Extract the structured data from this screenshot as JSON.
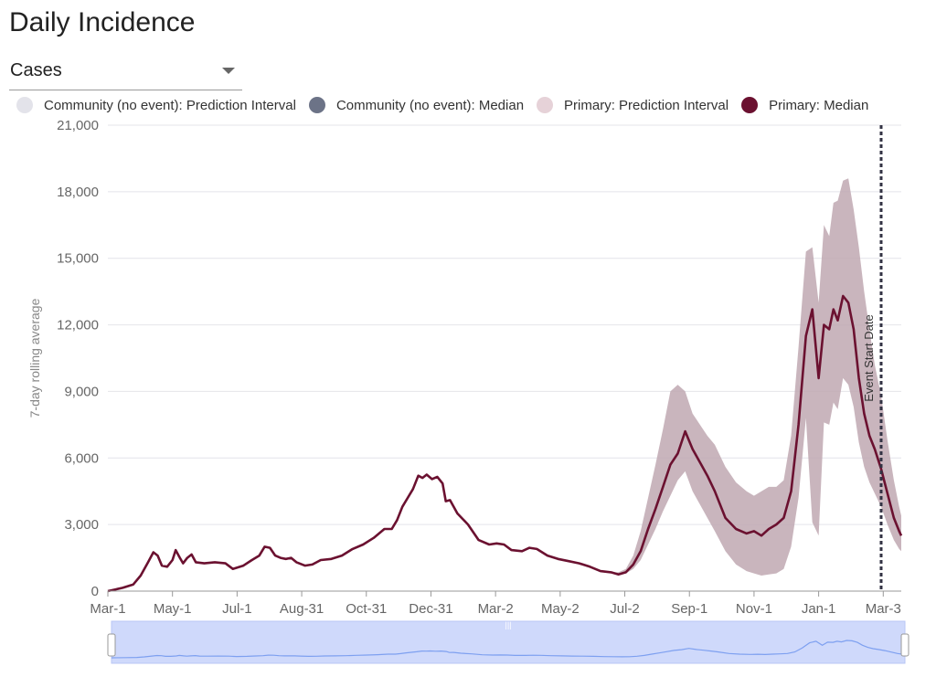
{
  "title": "Daily Incidence",
  "selector": {
    "value": "Cases"
  },
  "legend": [
    {
      "label": "Community (no event): Prediction Interval",
      "color": "#e3e3ea"
    },
    {
      "label": "Community (no event): Median",
      "color": "#6c7387"
    },
    {
      "label": "Primary: Prediction Interval",
      "color": "#e6d2d8"
    },
    {
      "label": "Primary: Median",
      "color": "#6b1130"
    }
  ],
  "colors": {
    "band": "#bfa8b1",
    "median": "#6b1130",
    "event_line": "#333344",
    "navigator": "#7ea0f0",
    "navigator_bg": "#cfd9fb"
  },
  "chart_data": {
    "type": "area",
    "ylabel": "7-day rolling average",
    "ylim": [
      0,
      21000
    ],
    "yticks": [
      0,
      3000,
      6000,
      9000,
      12000,
      15000,
      18000,
      21000
    ],
    "ytick_labels": [
      "0",
      "3,000",
      "6,000",
      "9,000",
      "12,000",
      "15,000",
      "18,000",
      "21,000"
    ],
    "x_range": [
      "2020-03-01",
      "2022-03-20"
    ],
    "xticks": [
      {
        "date": "2020-03-01",
        "label": "Mar-1"
      },
      {
        "date": "2020-05-01",
        "label": "May-1"
      },
      {
        "date": "2020-07-01",
        "label": "Jul-1"
      },
      {
        "date": "2020-08-31",
        "label": "Aug-31"
      },
      {
        "date": "2020-10-31",
        "label": "Oct-31"
      },
      {
        "date": "2020-12-31",
        "label": "Dec-31"
      },
      {
        "date": "2021-03-02",
        "label": "Mar-2"
      },
      {
        "date": "2021-05-02",
        "label": "May-2"
      },
      {
        "date": "2021-07-02",
        "label": "Jul-2"
      },
      {
        "date": "2021-09-01",
        "label": "Sep-1"
      },
      {
        "date": "2021-11-01",
        "label": "Nov-1"
      },
      {
        "date": "2022-01-01",
        "label": "Jan-1"
      },
      {
        "date": "2022-03-03",
        "label": "Mar-3"
      }
    ],
    "event": {
      "date": "2022-03-01",
      "label": "Event Start Date"
    },
    "series": [
      {
        "name": "Primary: Median",
        "points": [
          [
            "2020-03-01",
            0
          ],
          [
            "2020-03-15",
            150
          ],
          [
            "2020-03-25",
            300
          ],
          [
            "2020-04-01",
            700
          ],
          [
            "2020-04-08",
            1300
          ],
          [
            "2020-04-13",
            1750
          ],
          [
            "2020-04-17",
            1600
          ],
          [
            "2020-04-21",
            1150
          ],
          [
            "2020-04-26",
            1100
          ],
          [
            "2020-05-01",
            1400
          ],
          [
            "2020-05-04",
            1850
          ],
          [
            "2020-05-08",
            1500
          ],
          [
            "2020-05-11",
            1250
          ],
          [
            "2020-05-15",
            1500
          ],
          [
            "2020-05-19",
            1650
          ],
          [
            "2020-05-23",
            1300
          ],
          [
            "2020-05-31",
            1250
          ],
          [
            "2020-06-10",
            1300
          ],
          [
            "2020-06-20",
            1250
          ],
          [
            "2020-06-27",
            1000
          ],
          [
            "2020-07-07",
            1150
          ],
          [
            "2020-07-15",
            1400
          ],
          [
            "2020-07-22",
            1600
          ],
          [
            "2020-07-27",
            2000
          ],
          [
            "2020-08-01",
            1950
          ],
          [
            "2020-08-06",
            1600
          ],
          [
            "2020-08-11",
            1500
          ],
          [
            "2020-08-16",
            1450
          ],
          [
            "2020-08-21",
            1500
          ],
          [
            "2020-08-26",
            1300
          ],
          [
            "2020-09-03",
            1150
          ],
          [
            "2020-09-10",
            1200
          ],
          [
            "2020-09-18",
            1400
          ],
          [
            "2020-09-28",
            1450
          ],
          [
            "2020-10-08",
            1600
          ],
          [
            "2020-10-18",
            1900
          ],
          [
            "2020-10-28",
            2100
          ],
          [
            "2020-11-07",
            2400
          ],
          [
            "2020-11-17",
            2800
          ],
          [
            "2020-11-24",
            2800
          ],
          [
            "2020-11-29",
            3200
          ],
          [
            "2020-12-04",
            3800
          ],
          [
            "2020-12-09",
            4200
          ],
          [
            "2020-12-14",
            4600
          ],
          [
            "2020-12-19",
            5200
          ],
          [
            "2020-12-23",
            5100
          ],
          [
            "2020-12-27",
            5250
          ],
          [
            "2021-01-01",
            5050
          ],
          [
            "2021-01-06",
            5150
          ],
          [
            "2021-01-11",
            4850
          ],
          [
            "2021-01-14",
            4050
          ],
          [
            "2021-01-18",
            4100
          ],
          [
            "2021-01-25",
            3500
          ],
          [
            "2021-02-04",
            3000
          ],
          [
            "2021-02-14",
            2300
          ],
          [
            "2021-02-24",
            2100
          ],
          [
            "2021-03-03",
            2150
          ],
          [
            "2021-03-10",
            2100
          ],
          [
            "2021-03-17",
            1850
          ],
          [
            "2021-03-27",
            1800
          ],
          [
            "2021-04-03",
            1950
          ],
          [
            "2021-04-10",
            1900
          ],
          [
            "2021-04-20",
            1600
          ],
          [
            "2021-04-30",
            1450
          ],
          [
            "2021-05-10",
            1350
          ],
          [
            "2021-05-20",
            1250
          ],
          [
            "2021-05-30",
            1100
          ],
          [
            "2021-06-09",
            900
          ],
          [
            "2021-06-19",
            850
          ],
          [
            "2021-06-26",
            750
          ],
          [
            "2021-07-03",
            850
          ],
          [
            "2021-07-10",
            1200
          ],
          [
            "2021-07-17",
            1800
          ],
          [
            "2021-07-24",
            2800
          ],
          [
            "2021-07-31",
            3700
          ],
          [
            "2021-08-07",
            4700
          ],
          [
            "2021-08-14",
            5700
          ],
          [
            "2021-08-21",
            6200
          ],
          [
            "2021-08-28",
            7200
          ],
          [
            "2021-09-04",
            6400
          ],
          [
            "2021-09-11",
            5800
          ],
          [
            "2021-09-18",
            5200
          ],
          [
            "2021-09-25",
            4500
          ],
          [
            "2021-10-05",
            3300
          ],
          [
            "2021-10-15",
            2800
          ],
          [
            "2021-10-25",
            2600
          ],
          [
            "2021-11-01",
            2700
          ],
          [
            "2021-11-08",
            2500
          ],
          [
            "2021-11-15",
            2800
          ],
          [
            "2021-11-22",
            3000
          ],
          [
            "2021-11-29",
            3300
          ],
          [
            "2021-12-06",
            4500
          ],
          [
            "2021-12-13",
            7500
          ],
          [
            "2021-12-20",
            11500
          ],
          [
            "2021-12-26",
            12700
          ],
          [
            "2022-01-01",
            9600
          ],
          [
            "2022-01-06",
            12000
          ],
          [
            "2022-01-11",
            11800
          ],
          [
            "2022-01-15",
            12700
          ],
          [
            "2022-01-19",
            12200
          ],
          [
            "2022-01-24",
            13300
          ],
          [
            "2022-01-29",
            13000
          ],
          [
            "2022-02-03",
            11800
          ],
          [
            "2022-02-08",
            9600
          ],
          [
            "2022-02-13",
            8000
          ],
          [
            "2022-02-18",
            7000
          ],
          [
            "2022-02-23",
            6400
          ],
          [
            "2022-03-01",
            5500
          ],
          [
            "2022-03-07",
            4400
          ],
          [
            "2022-03-13",
            3300
          ],
          [
            "2022-03-18",
            2700
          ],
          [
            "2022-03-20",
            2500
          ]
        ]
      },
      {
        "name": "Primary: Prediction Interval",
        "points": [
          [
            "2021-06-19",
            850,
            850
          ],
          [
            "2021-06-26",
            750,
            850
          ],
          [
            "2021-07-03",
            800,
            1000
          ],
          [
            "2021-07-10",
            1000,
            1600
          ],
          [
            "2021-07-17",
            1400,
            2700
          ],
          [
            "2021-07-24",
            2100,
            4200
          ],
          [
            "2021-07-31",
            2800,
            5700
          ],
          [
            "2021-08-07",
            3600,
            7300
          ],
          [
            "2021-08-14",
            4300,
            9000
          ],
          [
            "2021-08-21",
            5000,
            9300
          ],
          [
            "2021-08-28",
            5400,
            9000
          ],
          [
            "2021-09-04",
            4500,
            8000
          ],
          [
            "2021-09-11",
            3900,
            7500
          ],
          [
            "2021-09-18",
            3300,
            7000
          ],
          [
            "2021-09-25",
            2700,
            6600
          ],
          [
            "2021-10-05",
            1800,
            5600
          ],
          [
            "2021-10-15",
            1200,
            4900
          ],
          [
            "2021-10-25",
            900,
            4500
          ],
          [
            "2021-11-01",
            800,
            4300
          ],
          [
            "2021-11-08",
            700,
            4500
          ],
          [
            "2021-11-15",
            750,
            4700
          ],
          [
            "2021-11-22",
            800,
            4700
          ],
          [
            "2021-11-29",
            1000,
            5000
          ],
          [
            "2021-12-06",
            2000,
            7000
          ],
          [
            "2021-12-13",
            4200,
            11000
          ],
          [
            "2021-12-20",
            7800,
            15300
          ],
          [
            "2021-12-26",
            3100,
            15500
          ],
          [
            "2022-01-01",
            2500,
            13000
          ],
          [
            "2022-01-06",
            7600,
            16500
          ],
          [
            "2022-01-11",
            7500,
            16000
          ],
          [
            "2022-01-15",
            8500,
            17500
          ],
          [
            "2022-01-19",
            8200,
            17600
          ],
          [
            "2022-01-24",
            9600,
            18500
          ],
          [
            "2022-01-29",
            9300,
            18600
          ],
          [
            "2022-02-03",
            8300,
            17200
          ],
          [
            "2022-02-08",
            6700,
            15500
          ],
          [
            "2022-02-13",
            5600,
            13500
          ],
          [
            "2022-02-18",
            4900,
            11800
          ],
          [
            "2022-02-23",
            4400,
            10200
          ],
          [
            "2022-03-01",
            3800,
            8800
          ],
          [
            "2022-03-07",
            3000,
            6800
          ],
          [
            "2022-03-13",
            2300,
            5000
          ],
          [
            "2022-03-18",
            1900,
            3800
          ],
          [
            "2022-03-20",
            1800,
            3400
          ]
        ]
      }
    ]
  }
}
